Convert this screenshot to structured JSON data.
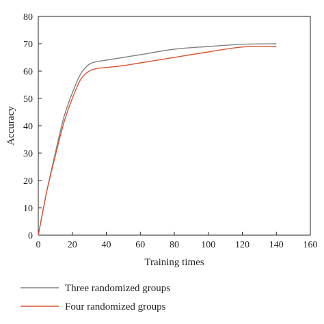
{
  "chart_data": {
    "type": "line",
    "xlabel": "Training times",
    "ylabel": "Accuracy",
    "xlim": [
      0,
      160
    ],
    "ylim": [
      0,
      80
    ],
    "xticks": [
      0,
      20,
      40,
      60,
      80,
      100,
      120,
      140,
      160
    ],
    "yticks": [
      0,
      10,
      20,
      30,
      40,
      50,
      60,
      70,
      80
    ],
    "grid": false,
    "legend_position": "bottom",
    "series": [
      {
        "name": "Three randomized groups",
        "color": "#808080",
        "x": [
          0,
          5,
          10,
          15,
          20,
          25,
          30,
          35,
          40,
          50,
          60,
          80,
          100,
          120,
          140
        ],
        "y": [
          0,
          16,
          30,
          43,
          52,
          59,
          62.5,
          63.5,
          64,
          65,
          66,
          68,
          69,
          69.8,
          70
        ]
      },
      {
        "name": "Four randomized groups",
        "color": "#d9532e",
        "x": [
          0,
          5,
          10,
          15,
          20,
          25,
          30,
          35,
          40,
          50,
          60,
          80,
          100,
          120,
          140
        ],
        "y": [
          0,
          16,
          29,
          41,
          50,
          57,
          60,
          61,
          61.3,
          62,
          63,
          65,
          67,
          68.8,
          69
        ]
      }
    ]
  }
}
